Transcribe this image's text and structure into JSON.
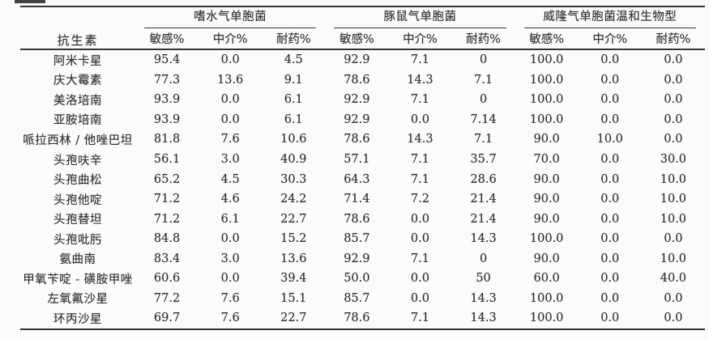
{
  "table": {
    "row_header_label": "抗生素",
    "groups": [
      {
        "label": "嗜水气单胞菌",
        "subheaders": [
          "敏感%",
          "中介%",
          "耐药%"
        ]
      },
      {
        "label": "豚鼠气单胞菌",
        "subheaders": [
          "敏感%",
          "中介%",
          "耐药%"
        ]
      },
      {
        "label": "威隆气单胞菌温和生物型",
        "subheaders": [
          "敏感%",
          "中介%",
          "耐药%"
        ]
      }
    ],
    "rows": [
      {
        "antibiotic": "阿米卡星",
        "values": [
          "95.4",
          "0.0",
          "4.5",
          "92.9",
          "7.1",
          "0",
          "100.0",
          "0.0",
          "0.0"
        ]
      },
      {
        "antibiotic": "庆大霉素",
        "values": [
          "77.3",
          "13.6",
          "9.1",
          "78.6",
          "14.3",
          "7.1",
          "100.0",
          "0.0",
          "0.0"
        ]
      },
      {
        "antibiotic": "美洛培南",
        "values": [
          "93.9",
          "0.0",
          "6.1",
          "92.9",
          "7.1",
          "0",
          "100.0",
          "0.0",
          "0.0"
        ]
      },
      {
        "antibiotic": "亚胺培南",
        "values": [
          "93.9",
          "0.0",
          "6.1",
          "92.9",
          "0.0",
          "7.14",
          "100.0",
          "0.0",
          "0.0"
        ]
      },
      {
        "antibiotic": "哌拉西林 / 他唑巴坦",
        "values": [
          "81.8",
          "7.6",
          "10.6",
          "78.6",
          "14.3",
          "7.1",
          "90.0",
          "10.0",
          "0.0"
        ]
      },
      {
        "antibiotic": "头孢呋辛",
        "values": [
          "56.1",
          "3.0",
          "40.9",
          "57.1",
          "7.1",
          "35.7",
          "70.0",
          "0.0",
          "30.0"
        ]
      },
      {
        "antibiotic": "头孢曲松",
        "values": [
          "65.2",
          "4.5",
          "30.3",
          "64.3",
          "7.1",
          "28.6",
          "90.0",
          "0.0",
          "10.0"
        ]
      },
      {
        "antibiotic": "头孢他啶",
        "values": [
          "71.2",
          "4.6",
          "24.2",
          "71.4",
          "7.2",
          "21.4",
          "90.0",
          "0.0",
          "10.0"
        ]
      },
      {
        "antibiotic": "头孢替坦",
        "values": [
          "71.2",
          "6.1",
          "22.7",
          "78.6",
          "0.0",
          "21.4",
          "90.0",
          "0.0",
          "10.0"
        ]
      },
      {
        "antibiotic": "头孢吡肟",
        "values": [
          "84.8",
          "0.0",
          "15.2",
          "85.7",
          "0.0",
          "14.3",
          "100.0",
          "0.0",
          "0.0"
        ]
      },
      {
        "antibiotic": "氨曲南",
        "values": [
          "83.4",
          "3.0",
          "13.6",
          "92.9",
          "7.1",
          "0",
          "90.0",
          "0.0",
          "10.0"
        ]
      },
      {
        "antibiotic": "甲氧苄啶 - 磺胺甲唑",
        "values": [
          "60.6",
          "0.0",
          "39.4",
          "50.0",
          "0.0",
          "50",
          "60.0",
          "0.0",
          "40.0"
        ]
      },
      {
        "antibiotic": "左氧氟沙星",
        "values": [
          "77.2",
          "7.6",
          "15.1",
          "85.7",
          "0.0",
          "14.3",
          "100.0",
          "0.0",
          "0.0"
        ]
      },
      {
        "antibiotic": "环丙沙星",
        "values": [
          "69.7",
          "7.6",
          "22.7",
          "78.6",
          "7.1",
          "14.3",
          "100.0",
          "0.0",
          "0.0"
        ]
      }
    ]
  },
  "colors": {
    "ink": "#2e2e2e",
    "rule": "#343434",
    "paper_background": "#fbfbf9"
  }
}
